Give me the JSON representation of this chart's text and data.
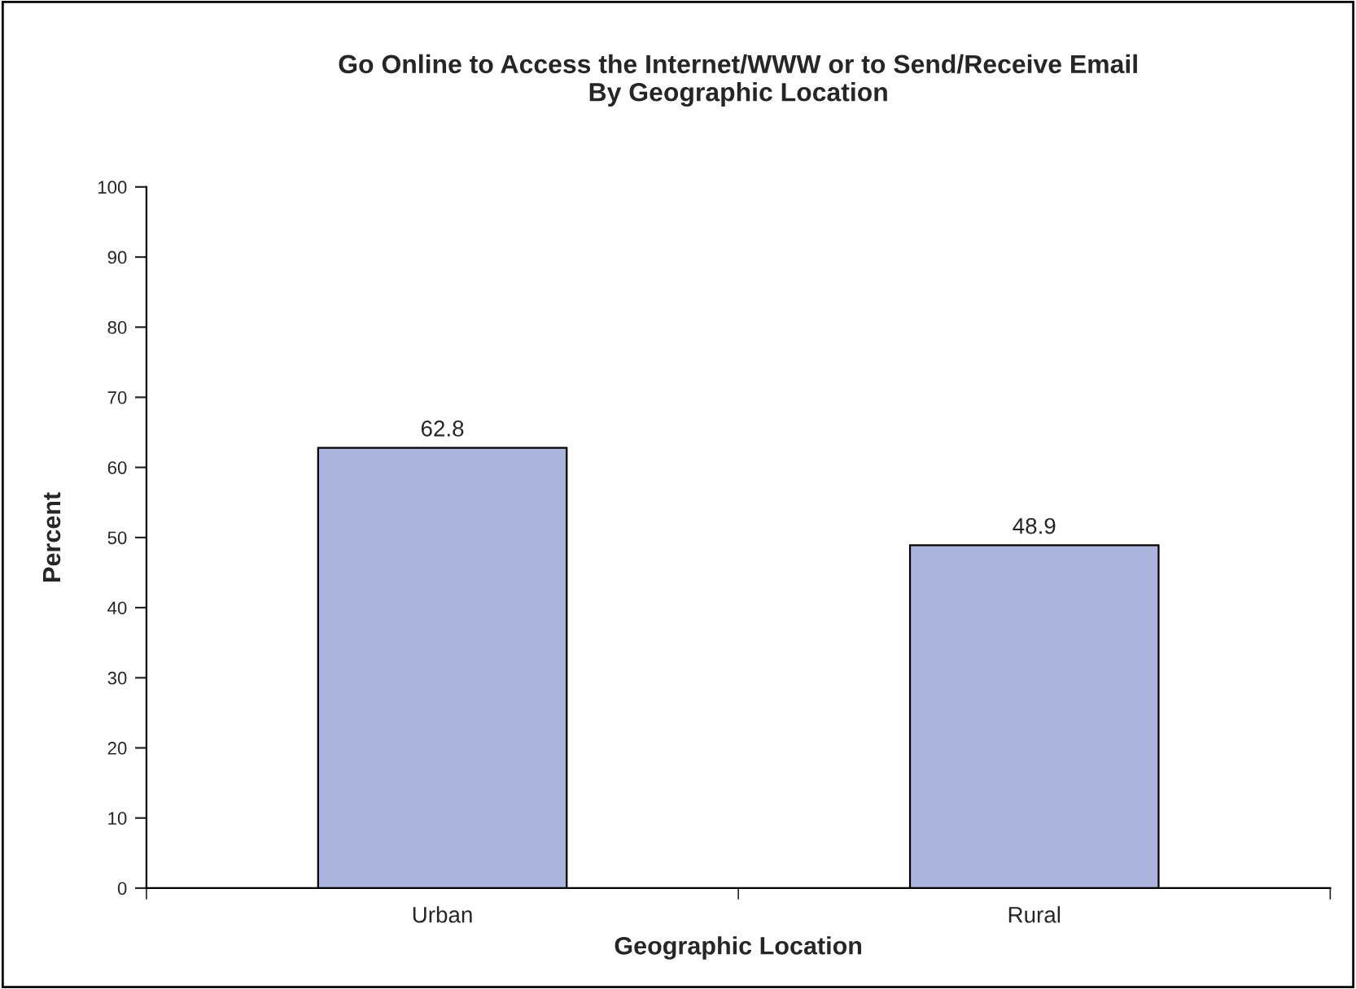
{
  "chart_data": {
    "type": "bar",
    "title": "Go Online to Access the Internet/WWW or to Send/Receive Email\nBy Geographic Location",
    "xlabel": "Geographic Location",
    "ylabel": "Percent",
    "categories": [
      "Urban",
      "Rural"
    ],
    "values": [
      62.8,
      48.9
    ],
    "color": "#aab4dc",
    "ylim": [
      0,
      100
    ],
    "yticks": [
      0,
      10,
      20,
      30,
      40,
      50,
      60,
      70,
      80,
      90,
      100
    ],
    "grid": false,
    "data_labels": true
  }
}
